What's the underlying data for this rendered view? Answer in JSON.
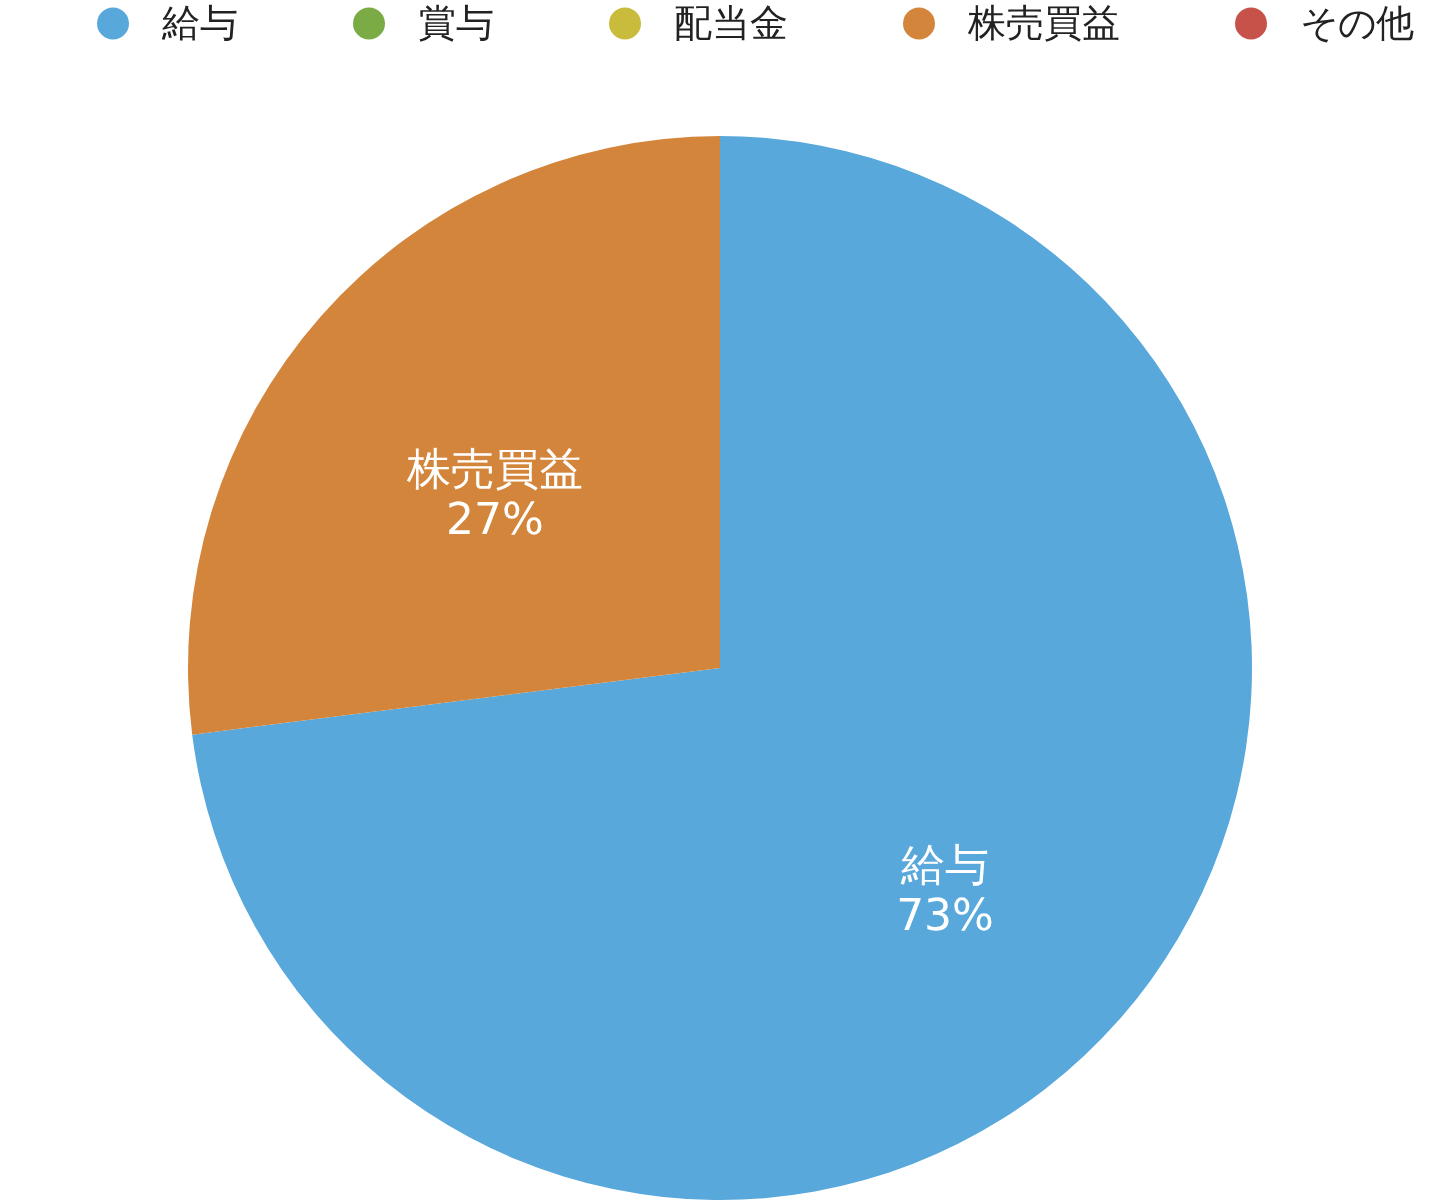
{
  "chart_data": {
    "type": "pie",
    "categories": [
      "給与",
      "賞与",
      "配当金",
      "株売買益",
      "その他"
    ],
    "values": [
      73,
      0,
      0,
      27,
      0
    ],
    "colors": [
      "#58a8dc",
      "#7aab45",
      "#c9bb3c",
      "#d3863b",
      "#c6524a"
    ],
    "value_labels": [
      "73%",
      null,
      null,
      "27%",
      null
    ],
    "legend": "top"
  }
}
